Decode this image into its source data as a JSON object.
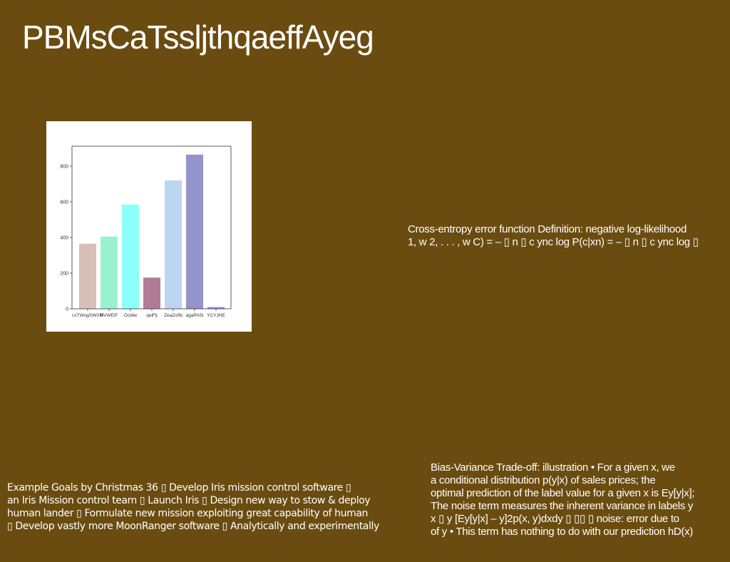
{
  "slide": {
    "title": "PBMsCaTssljthqaeffAyeg",
    "background": "#6b4c10"
  },
  "chart_data": {
    "type": "bar",
    "categories": [
      "cxTWogSWXM",
      "RVWEiF",
      "Ocldie",
      "qelFlj",
      "ZeaZuftb",
      "agaPASi",
      "YCYJHE"
    ],
    "values": [
      365,
      405,
      585,
      175,
      720,
      865,
      10
    ],
    "colors": [
      "#d8c0b8",
      "#9af2cc",
      "#8cfffa",
      "#b07c96",
      "#bcd6f2",
      "#9494ca",
      "#9a8ee8"
    ],
    "yticks": [
      0,
      200,
      400,
      600,
      800
    ],
    "ylim": [
      0,
      910
    ],
    "title": "",
    "xlabel": "",
    "ylabel": ""
  },
  "cross_entropy": {
    "lines": [
      "Cross-entropy error function Definition: negative log-likelihood",
      "1, w 2, . . . , w C) = – ▯ n ▯ c ync log P(c|xn) = – ▯ n ▯ c ync log ▯"
    ]
  },
  "bias_variance": {
    "lines": [
      "Bias-Variance Trade-off: illustration • For a given x, we",
      "a conditional distribution p(y|x) of sales prices; the",
      "optimal prediction of the label value for a given x is Ey[y|x];",
      "The noise term measures the inherent variance in labels y",
      "x ▯ y [Ey[y|x] – y]2p(x, y)dxdy ▯ ▯▯ ▯ noise: error due to",
      "of y • This term has nothing to do with our prediction hD(x)"
    ]
  },
  "goals": {
    "lines": [
      "Example Goals by Christmas 36 ▯ Develop Iris mission control software ▯",
      "an Iris Mission control team ▯ Launch Iris ▯ Design new way to stow & deploy",
      "human lander ▯ Formulate new mission exploiting great capability of human",
      "▯ Develop vastly more MoonRanger software ▯ Analytically and experimentally"
    ]
  }
}
